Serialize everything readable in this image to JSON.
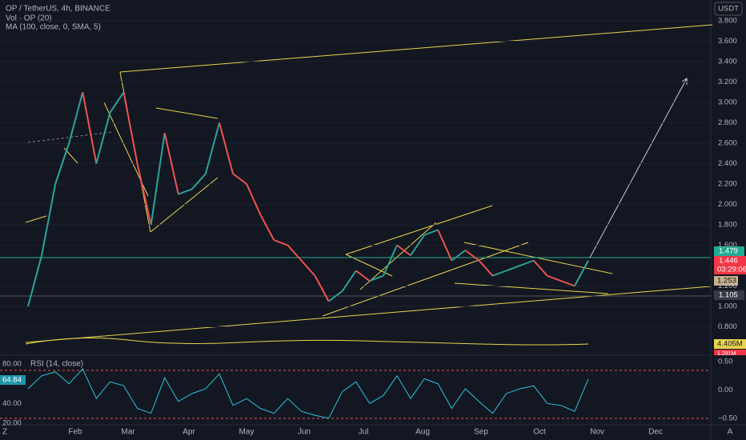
{
  "header": {
    "symbol": "OP / TetherUS, 4h, BINANCE",
    "volume": "Vol · OP (20)",
    "ma": "MA (100, close, 0, SMA, 5)"
  },
  "currency": "USDT",
  "price_axis": {
    "ticks": [
      {
        "value": 3.8,
        "label": "3.800"
      },
      {
        "value": 3.6,
        "label": "3.600"
      },
      {
        "value": 3.4,
        "label": "3.400"
      },
      {
        "value": 3.2,
        "label": "3.200"
      },
      {
        "value": 3.0,
        "label": "3.000"
      },
      {
        "value": 2.8,
        "label": "2.800"
      },
      {
        "value": 2.6,
        "label": "2.600"
      },
      {
        "value": 2.4,
        "label": "2.400"
      },
      {
        "value": 2.2,
        "label": "2.200"
      },
      {
        "value": 2.0,
        "label": "2.000"
      },
      {
        "value": 1.8,
        "label": "1.800"
      },
      {
        "value": 1.6,
        "label": "1.600"
      },
      {
        "value": 1.2,
        "label": "1.200"
      },
      {
        "value": 1.0,
        "label": "1.000"
      },
      {
        "value": 0.8,
        "label": "0.800"
      }
    ]
  },
  "price_labels": {
    "level": "1.479",
    "last": "1.446",
    "countdown": "03:29:06",
    "ma": "1.253",
    "support": "1.105",
    "volume_ma": "4.405M",
    "volume": "1.291M"
  },
  "price_series": [
    1.0,
    1.5,
    2.2,
    2.6,
    3.1,
    2.4,
    2.9,
    3.1,
    2.4,
    1.8,
    2.7,
    2.1,
    2.15,
    2.3,
    2.8,
    2.3,
    2.2,
    1.9,
    1.65,
    1.6,
    1.45,
    1.3,
    1.05,
    1.15,
    1.35,
    1.25,
    1.3,
    1.6,
    1.5,
    1.7,
    1.75,
    1.45,
    1.55,
    1.45,
    1.3,
    1.35,
    1.4,
    1.45,
    1.3,
    1.25,
    1.2,
    1.45
  ],
  "rsi": {
    "label": "RSI (14, close)",
    "current": "64.84",
    "ticks": [
      {
        "value": 80,
        "label": "80.00"
      },
      {
        "value": 40,
        "label": "40.00"
      },
      {
        "value": 20,
        "label": "20.00"
      }
    ],
    "right_ticks": [
      {
        "value": 0.5,
        "label": "0.50"
      },
      {
        "value": 0,
        "label": "0.00"
      },
      {
        "value": -0.5,
        "label": "−0.50"
      }
    ],
    "series": [
      55,
      68,
      72,
      60,
      75,
      45,
      62,
      58,
      35,
      30,
      66,
      42,
      50,
      55,
      70,
      38,
      45,
      35,
      30,
      45,
      32,
      28,
      25,
      52,
      62,
      40,
      48,
      68,
      45,
      65,
      60,
      35,
      55,
      42,
      30,
      50,
      55,
      58,
      40,
      38,
      32,
      64.84
    ]
  },
  "time_axis": [
    "Z",
    "Feb",
    "Mar",
    "Apr",
    "May",
    "Jun",
    "Jul",
    "Aug",
    "Sep",
    "Oct",
    "Nov",
    "Dec",
    "A"
  ]
}
